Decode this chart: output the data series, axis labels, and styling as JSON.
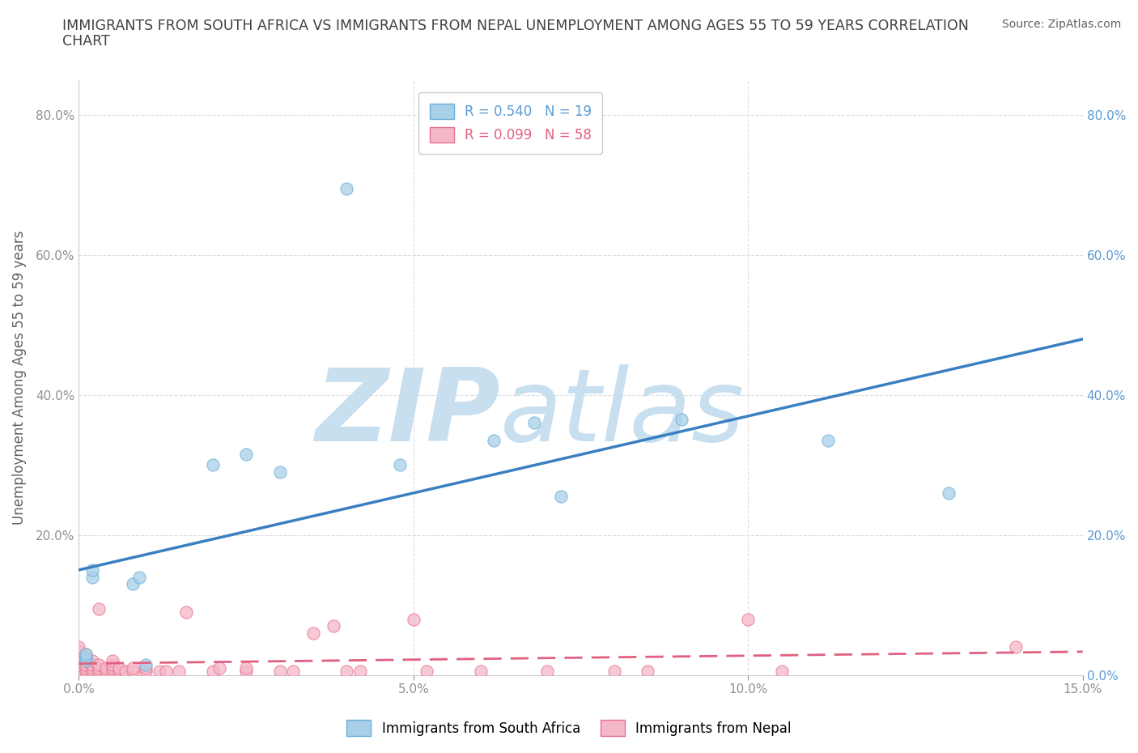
{
  "title_line1": "IMMIGRANTS FROM SOUTH AFRICA VS IMMIGRANTS FROM NEPAL UNEMPLOYMENT AMONG AGES 55 TO 59 YEARS CORRELATION",
  "title_line2": "CHART",
  "source": "Source: ZipAtlas.com",
  "ylabel": "Unemployment Among Ages 55 to 59 years",
  "xlim": [
    0.0,
    0.15
  ],
  "ylim": [
    0.0,
    0.85
  ],
  "xticks": [
    0.0,
    0.05,
    0.1,
    0.15
  ],
  "xtick_labels": [
    "0.0%",
    "5.0%",
    "10.0%",
    "15.0%"
  ],
  "yticks": [
    0.0,
    0.2,
    0.4,
    0.6,
    0.8
  ],
  "ytick_labels": [
    "",
    "20.0%",
    "40.0%",
    "60.0%",
    "80.0%"
  ],
  "right_ytick_labels": [
    "0.0%",
    "20.0%",
    "40.0%",
    "60.0%",
    "80.0%"
  ],
  "south_africa_color": "#a8d0e8",
  "south_africa_edge": "#6aaed6",
  "nepal_color": "#f4b8c8",
  "nepal_edge": "#e87090",
  "south_africa_R": 0.54,
  "south_africa_N": 19,
  "nepal_R": 0.099,
  "nepal_N": 58,
  "south_africa_x": [
    0.001,
    0.001,
    0.001,
    0.002,
    0.002,
    0.008,
    0.009,
    0.01,
    0.02,
    0.025,
    0.03,
    0.04,
    0.048,
    0.062,
    0.068,
    0.072,
    0.09,
    0.112,
    0.13
  ],
  "south_africa_y": [
    0.02,
    0.025,
    0.03,
    0.14,
    0.15,
    0.13,
    0.14,
    0.015,
    0.3,
    0.315,
    0.29,
    0.695,
    0.3,
    0.335,
    0.36,
    0.255,
    0.365,
    0.335,
    0.26
  ],
  "nepal_x": [
    0.0,
    0.0,
    0.0,
    0.0,
    0.0,
    0.0,
    0.0,
    0.0,
    0.001,
    0.001,
    0.001,
    0.001,
    0.001,
    0.001,
    0.002,
    0.002,
    0.002,
    0.002,
    0.003,
    0.003,
    0.003,
    0.003,
    0.004,
    0.004,
    0.005,
    0.005,
    0.005,
    0.005,
    0.006,
    0.006,
    0.007,
    0.008,
    0.008,
    0.01,
    0.01,
    0.012,
    0.013,
    0.015,
    0.016,
    0.02,
    0.021,
    0.025,
    0.025,
    0.03,
    0.032,
    0.035,
    0.038,
    0.04,
    0.042,
    0.05,
    0.052,
    0.06,
    0.07,
    0.08,
    0.085,
    0.1,
    0.105,
    0.14
  ],
  "nepal_y": [
    0.005,
    0.01,
    0.015,
    0.02,
    0.025,
    0.03,
    0.035,
    0.04,
    0.005,
    0.01,
    0.015,
    0.02,
    0.025,
    0.03,
    0.005,
    0.01,
    0.015,
    0.02,
    0.005,
    0.01,
    0.015,
    0.095,
    0.005,
    0.01,
    0.005,
    0.01,
    0.015,
    0.02,
    0.005,
    0.01,
    0.005,
    0.005,
    0.01,
    0.005,
    0.01,
    0.005,
    0.005,
    0.005,
    0.09,
    0.005,
    0.01,
    0.005,
    0.01,
    0.005,
    0.005,
    0.06,
    0.07,
    0.005,
    0.005,
    0.08,
    0.005,
    0.005,
    0.005,
    0.005,
    0.005,
    0.08,
    0.005,
    0.04
  ],
  "watermark_zip": "ZIP",
  "watermark_atlas": "atlas",
  "watermark_color_zip": "#c8dff0",
  "watermark_color_atlas": "#c8dff0",
  "background_color": "#ffffff",
  "grid_color": "#dddddd",
  "title_color": "#404040",
  "axis_label_color": "#606060",
  "left_tick_color": "#909090",
  "right_tick_color": "#5b9bd5",
  "legend_label_sa": "Immigrants from South Africa",
  "legend_label_np": "Immigrants from Nepal",
  "south_africa_line_color": "#3a7fc1",
  "nepal_line_color": "#e06080",
  "nepal_line_dash": [
    8,
    4
  ],
  "marker_size": 120
}
